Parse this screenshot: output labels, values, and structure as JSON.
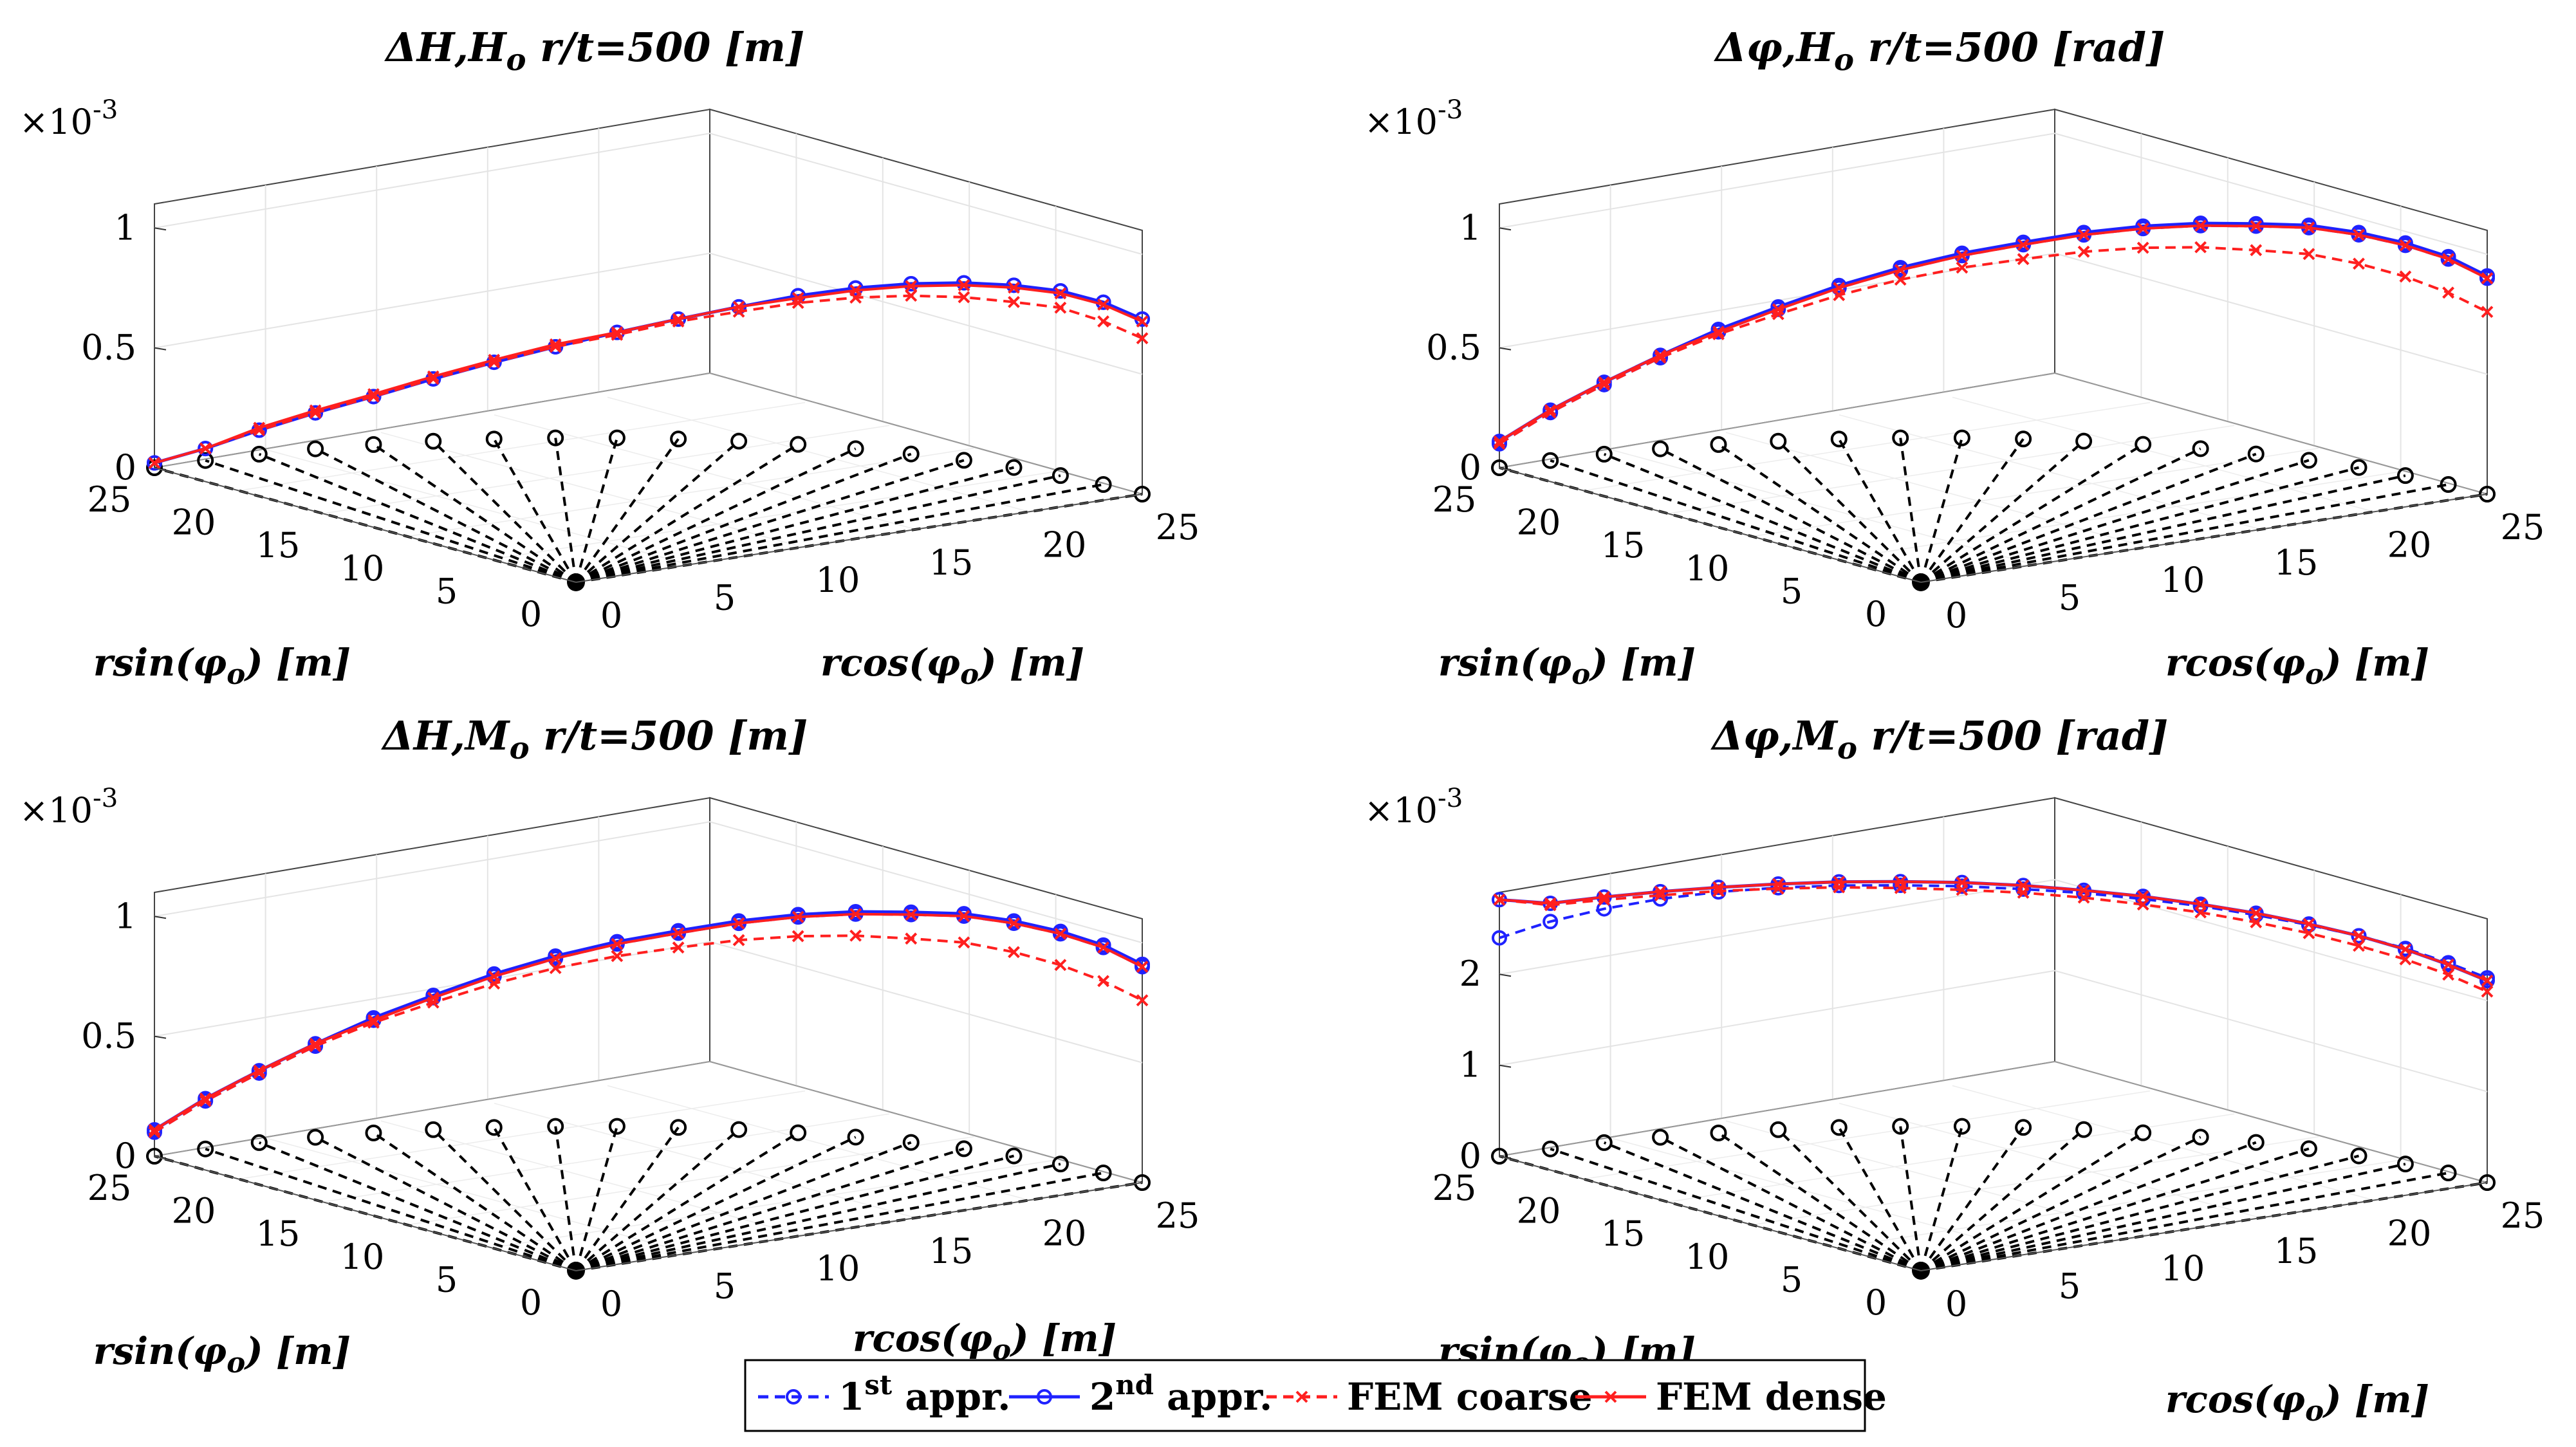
{
  "figure": {
    "legend": {
      "entries": [
        {
          "pre": "1",
          "sup": "st",
          "post": " appr."
        },
        {
          "pre": "2",
          "sup": "nd",
          "post": " appr."
        },
        {
          "pre": "FEM coarse",
          "sup": "",
          "post": ""
        },
        {
          "pre": "FEM dense",
          "sup": "",
          "post": ""
        }
      ]
    },
    "colors": {
      "first": "#1f22ff",
      "second": "#1f22ff",
      "coarse": "#ff1f1f",
      "dense": "#ff1f1f",
      "base": "#000000",
      "grid": "#e4e4e4"
    }
  },
  "chart_data": [
    {
      "type": "line",
      "title": {
        "a": "ΔH,H",
        "sub": "o",
        "b": " r/t=500 [m]"
      },
      "exponent": {
        "base": "×10",
        "power": "-3"
      },
      "zticks": [
        0,
        0.5,
        1
      ],
      "zlim": [
        0,
        1.1
      ],
      "ylabel": {
        "a": "rsin(φ",
        "sub": "o",
        "b": ") [m]"
      },
      "xlabel": {
        "a": "rcos(φ",
        "sub": "o",
        "b": ") [m]"
      },
      "yticks": [
        "25",
        "20",
        "15",
        "10",
        "5",
        "0"
      ],
      "xticks": [
        "0",
        "5",
        "10",
        "15",
        "20",
        "25"
      ],
      "series": [
        {
          "name": "1st appr.",
          "values": [
            0.02,
            0.05,
            0.1,
            0.15,
            0.2,
            0.26,
            0.32,
            0.38,
            0.44,
            0.5,
            0.56,
            0.62,
            0.67,
            0.71,
            0.74,
            0.76,
            0.77,
            0.76,
            0.73
          ]
        },
        {
          "name": "2nd appr.",
          "values": [
            0.02,
            0.05,
            0.1,
            0.15,
            0.2,
            0.26,
            0.32,
            0.38,
            0.44,
            0.5,
            0.56,
            0.62,
            0.67,
            0.71,
            0.74,
            0.76,
            0.77,
            0.76,
            0.73
          ]
        },
        {
          "name": "FEM coarse",
          "values": [
            0.02,
            0.05,
            0.1,
            0.15,
            0.2,
            0.26,
            0.32,
            0.38,
            0.43,
            0.49,
            0.54,
            0.59,
            0.63,
            0.66,
            0.68,
            0.69,
            0.7,
            0.68,
            0.65
          ]
        },
        {
          "name": "FEM dense",
          "values": [
            0.02,
            0.05,
            0.11,
            0.16,
            0.21,
            0.27,
            0.33,
            0.39,
            0.44,
            0.5,
            0.56,
            0.61,
            0.66,
            0.7,
            0.73,
            0.75,
            0.76,
            0.75,
            0.72
          ]
        }
      ]
    },
    {
      "type": "line",
      "title": {
        "a": "Δφ,H",
        "sub": "o",
        "b": " r/t=500  [rad]"
      },
      "exponent": {
        "base": "×10",
        "power": "-3"
      },
      "zticks": [
        0,
        0.5,
        1
      ],
      "zlim": [
        0,
        1.1
      ],
      "ylabel": {
        "a": "rsin(φ",
        "sub": "o",
        "b": ") [m]"
      },
      "xlabel": {
        "a": "rcos(φ",
        "sub": "o",
        "b": ") [m]"
      },
      "yticks": [
        "25",
        "20",
        "15",
        "10",
        "5",
        "0"
      ],
      "xticks": [
        "0",
        "5",
        "10",
        "15",
        "20",
        "25"
      ],
      "series": [
        {
          "name": "1st appr.",
          "values": [
            0.1,
            0.2,
            0.29,
            0.38,
            0.47,
            0.55,
            0.63,
            0.7,
            0.76,
            0.81,
            0.86,
            0.9,
            0.93,
            0.95,
            0.97,
            0.97,
            0.96,
            0.94,
            0.9
          ]
        },
        {
          "name": "2nd appr.",
          "values": [
            0.11,
            0.21,
            0.3,
            0.39,
            0.48,
            0.56,
            0.64,
            0.71,
            0.77,
            0.82,
            0.87,
            0.91,
            0.94,
            0.96,
            0.98,
            0.98,
            0.97,
            0.95,
            0.91
          ]
        },
        {
          "name": "FEM coarse",
          "values": [
            0.1,
            0.2,
            0.29,
            0.38,
            0.46,
            0.53,
            0.6,
            0.66,
            0.71,
            0.75,
            0.79,
            0.82,
            0.84,
            0.85,
            0.86,
            0.85,
            0.83,
            0.8,
            0.76
          ]
        },
        {
          "name": "FEM dense",
          "values": [
            0.11,
            0.21,
            0.3,
            0.39,
            0.47,
            0.55,
            0.63,
            0.7,
            0.76,
            0.81,
            0.86,
            0.9,
            0.93,
            0.95,
            0.97,
            0.97,
            0.96,
            0.94,
            0.9
          ]
        }
      ]
    },
    {
      "type": "line",
      "title": {
        "a": "ΔH,M",
        "sub": "o",
        "b": " r/t=500 [m]"
      },
      "exponent": {
        "base": "×10",
        "power": "-3"
      },
      "zticks": [
        0,
        0.5,
        1
      ],
      "zlim": [
        0,
        1.1
      ],
      "ylabel": {
        "a": "rsin(φ",
        "sub": "o",
        "b": ") [m]"
      },
      "xlabel": {
        "a": "rcos(φ",
        "sub": "o",
        "b": ") [m]"
      },
      "yticks": [
        "25",
        "20",
        "15",
        "10",
        "5",
        "0"
      ],
      "xticks": [
        "0",
        "5",
        "10",
        "15",
        "20",
        "25"
      ],
      "series": [
        {
          "name": "1st appr.",
          "values": [
            0.1,
            0.2,
            0.29,
            0.38,
            0.47,
            0.55,
            0.63,
            0.7,
            0.76,
            0.81,
            0.86,
            0.9,
            0.93,
            0.95,
            0.97,
            0.97,
            0.96,
            0.94,
            0.9
          ]
        },
        {
          "name": "2nd appr.",
          "values": [
            0.11,
            0.21,
            0.3,
            0.39,
            0.48,
            0.56,
            0.64,
            0.71,
            0.77,
            0.82,
            0.87,
            0.91,
            0.94,
            0.96,
            0.98,
            0.98,
            0.97,
            0.95,
            0.91
          ]
        },
        {
          "name": "FEM coarse",
          "values": [
            0.1,
            0.2,
            0.29,
            0.38,
            0.46,
            0.53,
            0.6,
            0.66,
            0.71,
            0.75,
            0.79,
            0.82,
            0.84,
            0.85,
            0.86,
            0.85,
            0.83,
            0.8,
            0.76
          ]
        },
        {
          "name": "FEM dense",
          "values": [
            0.11,
            0.21,
            0.3,
            0.39,
            0.47,
            0.55,
            0.63,
            0.7,
            0.76,
            0.81,
            0.86,
            0.9,
            0.93,
            0.95,
            0.97,
            0.97,
            0.96,
            0.94,
            0.9
          ]
        }
      ]
    },
    {
      "type": "line",
      "title": {
        "a": "Δφ,M",
        "sub": "o",
        "b": " r/t=500  [rad]"
      },
      "exponent": {
        "base": "×10",
        "power": "-3"
      },
      "zticks": [
        0,
        1,
        2
      ],
      "zlim": [
        0,
        2.9
      ],
      "ylabel": {
        "a": "rsin(φ",
        "sub": "o",
        "b": ") [m]"
      },
      "xlabel": {
        "a": "rcos(φ",
        "sub": "o",
        "b": ") [m]"
      },
      "yticks": [
        "25",
        "20",
        "15",
        "10",
        "5",
        "0"
      ],
      "xticks": [
        "0",
        "5",
        "10",
        "15",
        "20",
        "25"
      ],
      "series": [
        {
          "name": "1st appr.",
          "values": [
            2.4,
            2.5,
            2.57,
            2.62,
            2.65,
            2.66,
            2.66,
            2.65,
            2.64,
            2.62,
            2.6,
            2.57,
            2.54,
            2.5,
            2.46,
            2.42,
            2.37,
            2.31,
            2.25
          ]
        },
        {
          "name": "2nd appr.",
          "values": [
            2.82,
            2.7,
            2.7,
            2.7,
            2.7,
            2.7,
            2.7,
            2.69,
            2.68,
            2.66,
            2.63,
            2.6,
            2.56,
            2.52,
            2.47,
            2.42,
            2.36,
            2.29,
            2.22
          ]
        },
        {
          "name": "FEM coarse",
          "values": [
            2.82,
            2.68,
            2.67,
            2.66,
            2.66,
            2.65,
            2.64,
            2.62,
            2.6,
            2.58,
            2.55,
            2.51,
            2.47,
            2.42,
            2.37,
            2.31,
            2.25,
            2.18,
            2.1
          ]
        },
        {
          "name": "FEM dense",
          "values": [
            2.82,
            2.7,
            2.7,
            2.7,
            2.7,
            2.7,
            2.7,
            2.69,
            2.68,
            2.66,
            2.63,
            2.6,
            2.56,
            2.52,
            2.47,
            2.42,
            2.36,
            2.29,
            2.22
          ]
        }
      ]
    }
  ]
}
